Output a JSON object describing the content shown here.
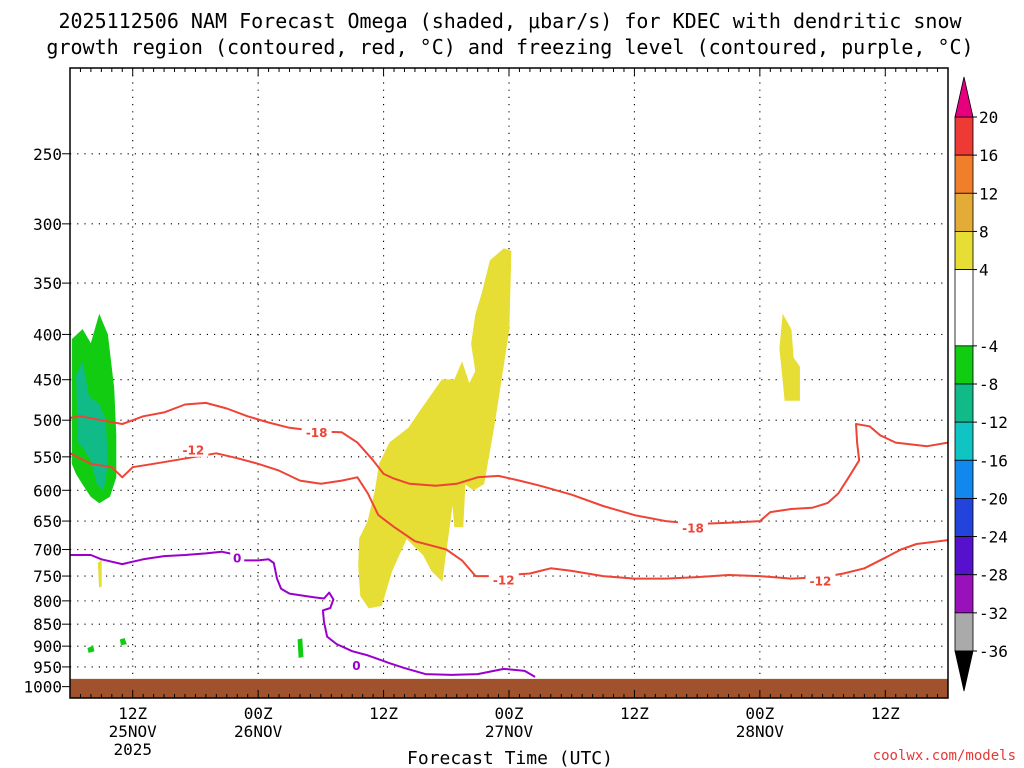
{
  "chart_data": {
    "type": "time-height-contour",
    "title_line1": "2025112506 NAM Forecast Omega (shaded, μbar/s) for KDEC with dendritic snow",
    "title_line2": "growth region (contoured, red, °C) and freezing level (contoured, purple, °C)",
    "xlabel": "Forecast Time (UTC)",
    "ylabel": "",
    "credit": "coolwx.com/models",
    "colors": {
      "credit": "#e53935",
      "dgz": "#ee4436",
      "freezing": "#9900cc",
      "ground": "#a0522d",
      "positive_omega": "#e6dd35",
      "negative_omega_weak": "#11cc11",
      "negative_omega_mid": "#11bb88"
    },
    "xlim_hours": [
      0,
      84
    ],
    "x_ticks": [
      {
        "hour": 6,
        "label": "12Z"
      },
      {
        "hour": 18,
        "label": "00Z"
      },
      {
        "hour": 30,
        "label": "12Z"
      },
      {
        "hour": 42,
        "label": "00Z"
      },
      {
        "hour": 54,
        "label": "12Z"
      },
      {
        "hour": 66,
        "label": "00Z"
      },
      {
        "hour": 78,
        "label": "12Z"
      }
    ],
    "date_labels": [
      {
        "hour": 6,
        "label": "25NOV"
      },
      {
        "hour": 6,
        "label": "2025",
        "line": 2
      },
      {
        "hour": 18,
        "label": "26NOV"
      },
      {
        "hour": 42,
        "label": "27NOV"
      },
      {
        "hour": 66,
        "label": "28NOV"
      }
    ],
    "pressure_levels_hpa": [
      250,
      300,
      350,
      400,
      450,
      500,
      550,
      600,
      650,
      700,
      750,
      800,
      850,
      900,
      950,
      1000
    ],
    "ylim_hpa": [
      200,
      1030
    ],
    "colorbar": {
      "labels": [
        "20",
        "16",
        "12",
        "8",
        "4",
        "-4",
        "-8",
        "-12",
        "-16",
        "-20",
        "-24",
        "-28",
        "-32",
        "-36"
      ],
      "segments": [
        {
          "from": 16,
          "to": 20,
          "color": "#ee3a35"
        },
        {
          "from": 12,
          "to": 16,
          "color": "#f07e2a"
        },
        {
          "from": 8,
          "to": 12,
          "color": "#e3ac36"
        },
        {
          "from": 4,
          "to": 8,
          "color": "#e6dd35"
        },
        {
          "from": -4,
          "to": 4,
          "color": "#ffffff"
        },
        {
          "from": -8,
          "to": -4,
          "color": "#11cc11"
        },
        {
          "from": -12,
          "to": -8,
          "color": "#11bb88"
        },
        {
          "from": -16,
          "to": -12,
          "color": "#11c4c4"
        },
        {
          "from": -20,
          "to": -16,
          "color": "#1188ee"
        },
        {
          "from": -24,
          "to": -20,
          "color": "#2244dd"
        },
        {
          "from": -28,
          "to": -24,
          "color": "#5511cc"
        },
        {
          "from": -32,
          "to": -28,
          "color": "#9911bb"
        },
        {
          "from": -36,
          "to": -32,
          "color": "#aaaaaa"
        }
      ],
      "top_arrow_color": "#e6007e",
      "bottom_arrow_color": "#000000"
    },
    "omega_regions": [
      {
        "name": "upward-motion-core-early",
        "value": -8,
        "color": "#11cc11",
        "points": [
          [
            0.2,
            405
          ],
          [
            1.2,
            395
          ],
          [
            2,
            410
          ],
          [
            2.8,
            380
          ],
          [
            3.6,
            400
          ],
          [
            4.2,
            460
          ],
          [
            4.4,
            520
          ],
          [
            4.4,
            580
          ],
          [
            3.8,
            610
          ],
          [
            2.8,
            620
          ],
          [
            2,
            610
          ],
          [
            1.2,
            590
          ],
          [
            0.6,
            575
          ],
          [
            0.2,
            560
          ]
        ]
      },
      {
        "name": "upward-motion-strong-early",
        "value": -12,
        "color": "#11bb88",
        "points": [
          [
            0.6,
            445
          ],
          [
            1.2,
            430
          ],
          [
            1.8,
            470
          ],
          [
            2.8,
            480
          ],
          [
            3.4,
            500
          ],
          [
            3.6,
            560
          ],
          [
            3.2,
            600
          ],
          [
            2.6,
            590
          ],
          [
            2,
            555
          ],
          [
            1.4,
            540
          ],
          [
            0.8,
            530
          ]
        ]
      },
      {
        "name": "small-upward-cell-a",
        "value": -4,
        "color": "#11cc11",
        "points": [
          [
            1.7,
            905
          ],
          [
            2.2,
            900
          ],
          [
            2.3,
            912
          ],
          [
            1.8,
            915
          ]
        ]
      },
      {
        "name": "small-upward-cell-b",
        "value": -4,
        "color": "#11cc11",
        "points": [
          [
            4.8,
            885
          ],
          [
            5.2,
            882
          ],
          [
            5.4,
            895
          ],
          [
            4.9,
            897
          ]
        ]
      },
      {
        "name": "small-upward-cell-c",
        "value": -4,
        "color": "#11cc11",
        "points": [
          [
            21.8,
            885
          ],
          [
            22.2,
            883
          ],
          [
            22.3,
            925
          ],
          [
            21.9,
            927
          ]
        ]
      },
      {
        "name": "downward-motion-small-early",
        "value": 4,
        "color": "#e6dd35",
        "points": [
          [
            2.7,
            725
          ],
          [
            3.0,
            720
          ],
          [
            3.0,
            770
          ],
          [
            2.8,
            772
          ]
        ]
      },
      {
        "name": "downward-motion-main",
        "value": 4,
        "color": "#e6dd35",
        "points": [
          [
            41.5,
            320
          ],
          [
            42.2,
            322
          ],
          [
            42,
            395
          ],
          [
            40.6,
            505
          ],
          [
            39.6,
            590
          ],
          [
            38.6,
            600
          ],
          [
            37.8,
            590
          ],
          [
            37.6,
            660
          ],
          [
            36.8,
            660
          ],
          [
            36.6,
            620
          ],
          [
            35.6,
            760
          ],
          [
            34.6,
            740
          ],
          [
            33.8,
            710
          ],
          [
            32.2,
            680
          ],
          [
            30.8,
            740
          ],
          [
            29.8,
            810
          ],
          [
            28.6,
            815
          ],
          [
            27.8,
            790
          ],
          [
            27.6,
            730
          ],
          [
            27.7,
            680
          ],
          [
            28.5,
            650
          ],
          [
            29.2,
            600
          ],
          [
            29.6,
            560
          ],
          [
            30.6,
            530
          ],
          [
            32.4,
            510
          ],
          [
            33.4,
            490
          ],
          [
            35.6,
            450
          ],
          [
            36.8,
            450
          ],
          [
            37.5,
            430
          ],
          [
            38.2,
            455
          ],
          [
            38.8,
            440
          ],
          [
            38.4,
            410
          ],
          [
            38.8,
            380
          ],
          [
            39.4,
            360
          ],
          [
            40.2,
            330
          ]
        ]
      },
      {
        "name": "downward-motion-late",
        "value": 4,
        "color": "#e6dd35",
        "points": [
          [
            68.2,
            380
          ],
          [
            69,
            395
          ],
          [
            69.2,
            425
          ],
          [
            69.8,
            435
          ],
          [
            69.8,
            475
          ],
          [
            68.4,
            475
          ],
          [
            68.2,
            450
          ],
          [
            67.9,
            415
          ]
        ]
      }
    ],
    "contours": [
      {
        "name": "dgz-minus-12",
        "value": -12,
        "label": "-12",
        "color": "#ee4436",
        "points": [
          [
            0,
            545
          ],
          [
            2,
            560
          ],
          [
            4,
            565
          ],
          [
            5,
            580
          ],
          [
            6,
            565
          ],
          [
            8,
            560
          ],
          [
            10,
            555
          ],
          [
            12,
            550
          ],
          [
            14,
            545
          ],
          [
            16,
            552
          ],
          [
            18,
            560
          ],
          [
            20,
            570
          ],
          [
            22,
            585
          ],
          [
            24,
            590
          ],
          [
            26,
            585
          ],
          [
            27.5,
            580
          ],
          [
            28.5,
            605
          ],
          [
            29.5,
            640
          ],
          [
            31,
            660
          ],
          [
            33,
            685
          ],
          [
            36,
            700
          ],
          [
            37.5,
            720
          ],
          [
            38.8,
            750
          ],
          [
            40,
            750
          ],
          [
            42,
            748
          ],
          [
            44,
            745
          ],
          [
            45,
            740
          ],
          [
            46,
            735
          ],
          [
            48,
            740
          ],
          [
            51,
            750
          ],
          [
            54,
            755
          ],
          [
            57,
            755
          ],
          [
            60,
            752
          ],
          [
            63,
            748
          ],
          [
            66,
            750
          ],
          [
            69,
            755
          ],
          [
            72,
            752
          ],
          [
            74,
            745
          ],
          [
            76,
            735
          ],
          [
            78,
            715
          ],
          [
            79.5,
            700
          ],
          [
            81,
            690
          ],
          [
            84,
            683
          ]
        ],
        "label_positions": [
          [
            11.8,
            540
          ],
          [
            41.5,
            758
          ],
          [
            71.8,
            760
          ]
        ]
      },
      {
        "name": "dgz-minus-18",
        "value": -18,
        "label": "-18",
        "color": "#ee4436",
        "points": [
          [
            0,
            497
          ],
          [
            1,
            495
          ],
          [
            3,
            500
          ],
          [
            5,
            505
          ],
          [
            7,
            495
          ],
          [
            9,
            490
          ],
          [
            11,
            480
          ],
          [
            13,
            478
          ],
          [
            15,
            485
          ],
          [
            17,
            495
          ],
          [
            19,
            503
          ],
          [
            21,
            510
          ],
          [
            24,
            515
          ],
          [
            26,
            516
          ],
          [
            27.5,
            530
          ],
          [
            29,
            555
          ],
          [
            30,
            575
          ],
          [
            31,
            582
          ],
          [
            32.5,
            590
          ],
          [
            35,
            593
          ],
          [
            37,
            590
          ],
          [
            39,
            580
          ],
          [
            41,
            578
          ],
          [
            43,
            585
          ],
          [
            45,
            593
          ],
          [
            48,
            607
          ],
          [
            51,
            625
          ],
          [
            54,
            640
          ],
          [
            57,
            650
          ],
          [
            60,
            655
          ],
          [
            63,
            653
          ],
          [
            66,
            650
          ],
          [
            67,
            635
          ],
          [
            69,
            630
          ],
          [
            71,
            628
          ],
          [
            72.5,
            620
          ],
          [
            73.5,
            605
          ],
          [
            74.5,
            580
          ],
          [
            75.5,
            555
          ],
          [
            75.3,
            530
          ],
          [
            75.2,
            505
          ],
          [
            76.5,
            508
          ],
          [
            77.5,
            520
          ],
          [
            79,
            530
          ],
          [
            82,
            535
          ],
          [
            84,
            530
          ]
        ],
        "label_positions": [
          [
            23.6,
            516
          ],
          [
            59.6,
            662
          ]
        ]
      },
      {
        "name": "freezing-level-0",
        "value": 0,
        "label": "0",
        "color": "#9900cc",
        "points": [
          [
            0,
            710
          ],
          [
            2,
            710
          ],
          [
            3,
            718
          ],
          [
            5,
            727
          ],
          [
            7,
            718
          ],
          [
            9,
            712
          ],
          [
            11,
            710
          ],
          [
            13,
            707
          ],
          [
            14.5,
            704
          ],
          [
            15.5,
            708
          ],
          [
            16.5,
            720
          ],
          [
            18,
            720
          ],
          [
            19,
            718
          ],
          [
            19.5,
            725
          ],
          [
            19.8,
            755
          ],
          [
            20.2,
            775
          ],
          [
            21,
            785
          ],
          [
            22.5,
            790
          ],
          [
            23.5,
            793
          ],
          [
            24.3,
            795
          ],
          [
            24.8,
            783
          ],
          [
            25.2,
            797
          ],
          [
            24.9,
            815
          ],
          [
            24.2,
            820
          ],
          [
            24.3,
            845
          ],
          [
            24.6,
            878
          ],
          [
            25.5,
            895
          ],
          [
            27,
            912
          ],
          [
            28.5,
            922
          ],
          [
            30.5,
            940
          ],
          [
            32,
            953
          ],
          [
            34,
            968
          ],
          [
            36.5,
            970
          ],
          [
            39,
            968
          ],
          [
            41.5,
            955
          ],
          [
            43.5,
            960
          ],
          [
            44.5,
            975
          ]
        ],
        "label_positions": [
          [
            16.0,
            716
          ],
          [
            27.4,
            946
          ]
        ]
      }
    ],
    "ground_surface_hpa": 980
  }
}
